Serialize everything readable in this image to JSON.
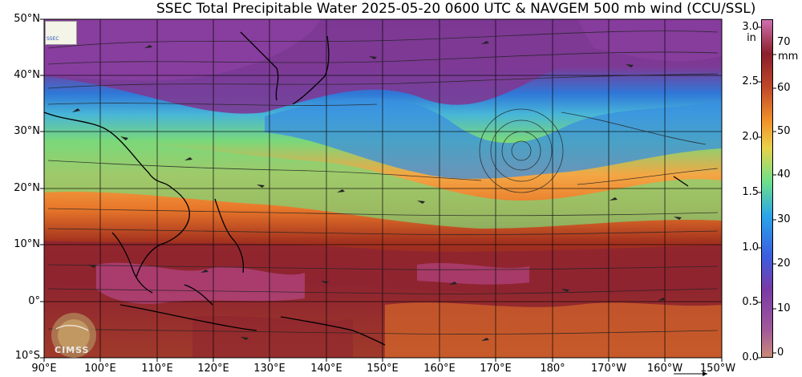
{
  "title": "SSEC Total Precipitable Water  2025-05-20 0600 UTC & NAVGEM 500 mb wind (CCU/SSL)",
  "lat_labels": [
    "50°N",
    "40°N",
    "30°N",
    "20°N",
    "10°N",
    "0°",
    "10°S"
  ],
  "lon_labels": [
    "90°E",
    "100°E",
    "110°E",
    "120°E",
    "130°E",
    "140°E",
    "150°E",
    "160°E",
    "170°E",
    "180°",
    "170°W",
    "160°W",
    "150°W"
  ],
  "colorbar": {
    "inch_unit": "in",
    "mm_unit": "mm",
    "inch_ticks": [
      "3.0",
      "2.5",
      "2.0",
      "1.5",
      "1.0",
      "0.5",
      "0.0"
    ],
    "mm_ticks": [
      "70",
      "60",
      "50",
      "40",
      "30",
      "20",
      "10",
      "0"
    ]
  },
  "logos": {
    "top_left": "SSEC",
    "bottom_left": "CIMSS"
  },
  "colors": {
    "dry": "#5a2a8a",
    "blue": "#1f8fe6",
    "green": "#6fe07a",
    "orange": "#f08a2a",
    "moist": "#8a1f1f",
    "very_moist": "#c050a0",
    "grid": "#000000"
  }
}
